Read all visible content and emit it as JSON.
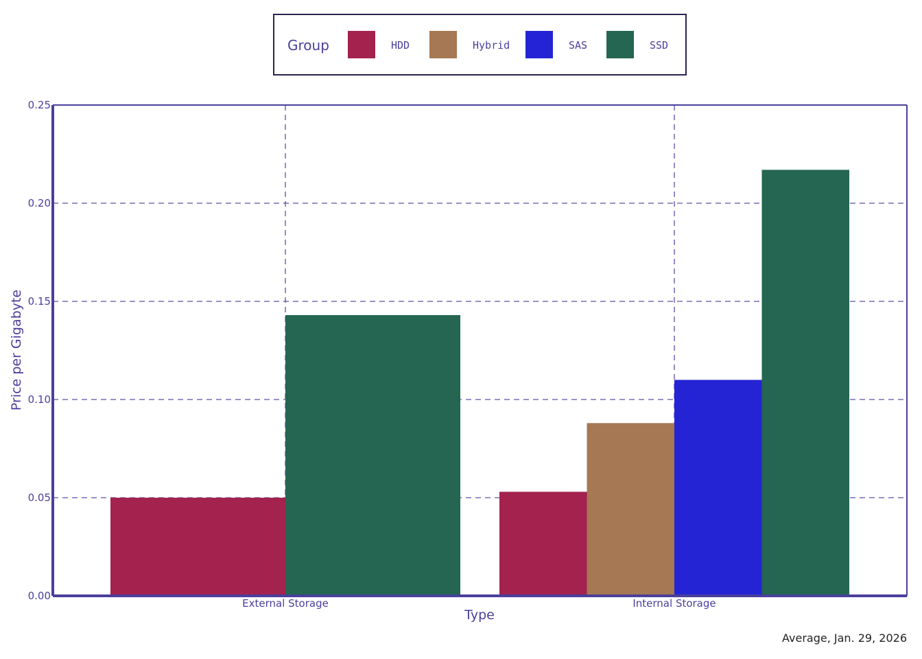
{
  "chart_data": {
    "type": "bar",
    "categories": [
      "External Storage",
      "Internal Storage"
    ],
    "series": [
      {
        "name": "HDD",
        "color": "#a3224e",
        "values": [
          0.05,
          0.053
        ]
      },
      {
        "name": "Hybrid",
        "color": "#a67853",
        "values": [
          null,
          0.088
        ]
      },
      {
        "name": "SAS",
        "color": "#2424d4",
        "values": [
          null,
          0.11
        ]
      },
      {
        "name": "SSD",
        "color": "#246651",
        "values": [
          0.143,
          0.217
        ]
      }
    ],
    "xlabel": "Type",
    "ylabel": "Price per Gigabyte",
    "ylim": [
      0,
      0.25
    ],
    "yticks": [
      "0.00",
      "0.05",
      "0.10",
      "0.15",
      "0.20",
      "0.25"
    ],
    "grid": true,
    "legend": {
      "title": "Group",
      "placement": "top-center"
    },
    "caption": "Average, Jan. 29, 2026",
    "colors": {
      "axis": "#4a3f9c",
      "grid": "#5a4fa8",
      "legend_border": "#2a2350"
    }
  }
}
